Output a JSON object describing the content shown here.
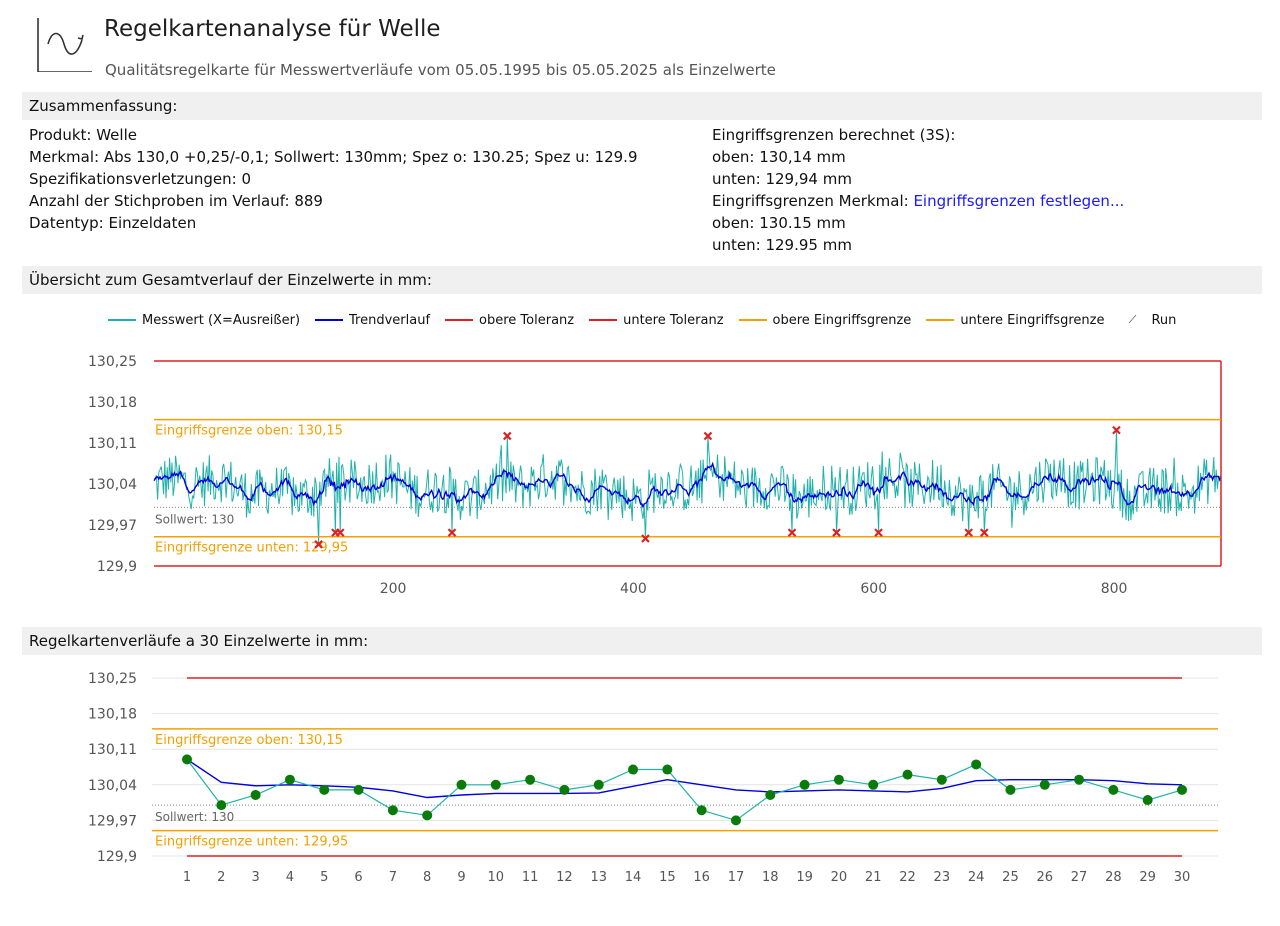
{
  "header": {
    "title": "Regelkartenanalyse für Welle",
    "subtitle": "Qualitätsregelkarte für Messwertverläufe vom 05.05.1995 bis 05.05.2025 als Einzelwerte",
    "icon": "control-chart-icon"
  },
  "summary": {
    "heading": "Zusammenfassung:",
    "left": [
      "Produkt: Welle",
      "Merkmal: Abs 130,0 +0,25/-0,1; Sollwert: 130mm; Spez o: 130.25; Spez u: 129.9",
      "Spezifikationsverletzungen: 0",
      "Anzahl der Stichproben im Verlauf: 889",
      "Datentyp: Einzeldaten"
    ],
    "right": {
      "calc_heading": "Eingriffsgrenzen berechnet (3S):",
      "calc_upper": "oben: 130,14 mm",
      "calc_lower": "unten: 129,94 mm",
      "feature_prefix": "Eingriffsgrenzen Merkmal: ",
      "feature_link": "Eingriffsgrenzen festlegen...",
      "feature_upper": "oben: 130.15 mm",
      "feature_lower": "unten: 129.95 mm"
    }
  },
  "overview": {
    "heading": "Übersicht zum Gesamtverlauf der Einzelwerte in mm:",
    "legend": [
      {
        "label": "Messwert (X=Ausreißer)",
        "color": "#20b2aa"
      },
      {
        "label": "Trendverlauf",
        "color": "#0000dd"
      },
      {
        "label": "obere Toleranz",
        "color": "#e02020"
      },
      {
        "label": "untere Toleranz",
        "color": "#e02020"
      },
      {
        "label": "obere Eingriffsgrenze",
        "color": "#f5a000"
      },
      {
        "label": "untere Eingriffsgrenze",
        "color": "#f5a000"
      }
    ],
    "legend_run_label": "Run",
    "upper_limit_label": "Eingriffsgrenze oben: 130,15",
    "lower_limit_label": "Eingriffsgrenze unten: 129,95",
    "target_label": "Sollwert: 130"
  },
  "detail": {
    "heading": "Regelkartenverläufe a 30 Einzelwerte in mm:",
    "upper_limit_label": "Eingriffsgrenze oben: 130,15",
    "lower_limit_label": "Eingriffsgrenze unten: 129,95",
    "target_label": "Sollwert: 130"
  },
  "chart_data": [
    {
      "type": "line",
      "title": "Übersicht zum Gesamtverlauf der Einzelwerte in mm:",
      "n_points": 889,
      "xlim": [
        1,
        889
      ],
      "x_ticks": [
        200,
        400,
        600,
        800
      ],
      "ylim": [
        129.9,
        130.25
      ],
      "y_ticks": [
        "130,25",
        "130,18",
        "130,11",
        "130,04",
        "129,97",
        "129,9"
      ],
      "y_tick_values": [
        130.25,
        130.18,
        130.11,
        130.04,
        129.97,
        129.9
      ],
      "tolerance_upper": 130.25,
      "tolerance_lower": 129.9,
      "control_upper": 130.15,
      "control_lower": 129.95,
      "target": 130.0,
      "series_mean": 130.035,
      "series_range": [
        129.93,
        130.14
      ],
      "outliers": [
        {
          "x": 138,
          "y": 129.937
        },
        {
          "x": 152,
          "y": 129.957
        },
        {
          "x": 156,
          "y": 129.957
        },
        {
          "x": 249,
          "y": 129.957
        },
        {
          "x": 295,
          "y": 130.122
        },
        {
          "x": 410,
          "y": 129.947
        },
        {
          "x": 462,
          "y": 130.122
        },
        {
          "x": 532,
          "y": 129.957
        },
        {
          "x": 569,
          "y": 129.957
        },
        {
          "x": 604,
          "y": 129.957
        },
        {
          "x": 679,
          "y": 129.957
        },
        {
          "x": 692,
          "y": 129.957
        },
        {
          "x": 802,
          "y": 130.132
        }
      ],
      "legend_position": "top",
      "grid": false
    },
    {
      "type": "line",
      "title": "Regelkartenverläufe a 30 Einzelwerte in mm:",
      "categories": [
        "1",
        "2",
        "3",
        "4",
        "5",
        "6",
        "7",
        "8",
        "9",
        "10",
        "11",
        "12",
        "13",
        "14",
        "15",
        "16",
        "17",
        "18",
        "19",
        "20",
        "21",
        "22",
        "23",
        "24",
        "25",
        "26",
        "27",
        "28",
        "29",
        "30"
      ],
      "ylim": [
        129.9,
        130.25
      ],
      "y_ticks": [
        "130,25",
        "130,18",
        "130,11",
        "130,04",
        "129,97",
        "129,9"
      ],
      "y_tick_values": [
        130.25,
        130.18,
        130.11,
        130.04,
        129.97,
        129.9
      ],
      "tolerance_upper": 130.25,
      "tolerance_lower": 129.9,
      "control_upper": 130.15,
      "control_lower": 129.95,
      "target": 130.0,
      "series": [
        {
          "name": "Messwert",
          "color": "#20b2aa",
          "marker_color": "#0a7a0a",
          "values": [
            130.09,
            130.0,
            130.02,
            130.05,
            130.03,
            130.03,
            129.99,
            129.98,
            130.04,
            130.04,
            130.05,
            130.03,
            130.04,
            130.07,
            130.07,
            129.99,
            129.97,
            130.02,
            130.04,
            130.05,
            130.04,
            130.06,
            130.05,
            130.08,
            130.03,
            130.04,
            130.05,
            130.03,
            130.01,
            130.03
          ]
        },
        {
          "name": "Trendverlauf",
          "color": "#0000dd",
          "values": [
            130.09,
            130.045,
            130.038,
            130.04,
            130.038,
            130.035,
            130.028,
            130.015,
            130.02,
            130.023,
            130.023,
            130.023,
            130.024,
            130.037,
            130.05,
            130.04,
            130.03,
            130.026,
            130.028,
            130.03,
            130.028,
            130.026,
            130.033,
            130.048,
            130.05,
            130.05,
            130.05,
            130.048,
            130.042,
            130.04
          ]
        }
      ]
    }
  ]
}
